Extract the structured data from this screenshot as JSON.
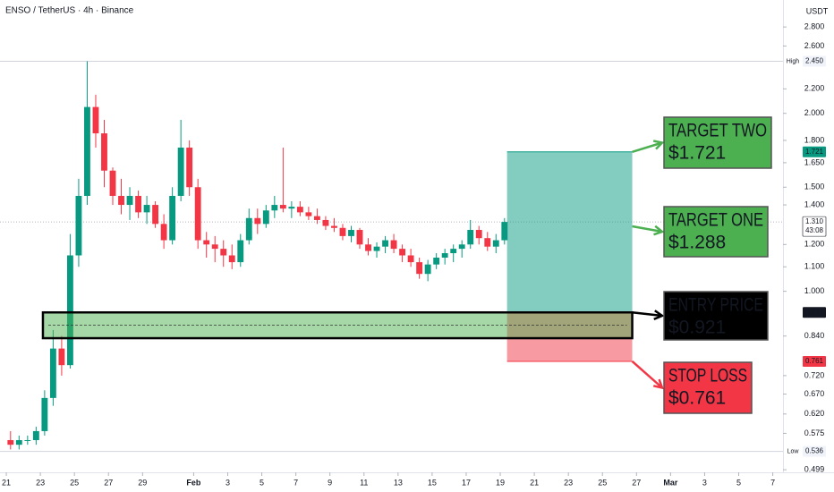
{
  "chart_data": {
    "type": "candlestick",
    "title": "ENSO / TetherUS · 4h · Binance",
    "currency": "USDT",
    "log_scale": true,
    "grid": false,
    "up_color": "#089981",
    "down_color": "#f23645",
    "x": [
      0.25,
      0.75,
      1.25,
      1.75,
      2.25,
      2.75,
      3.25,
      3.75,
      4.25,
      4.75,
      5.25,
      5.75,
      6.25,
      6.75,
      7.25,
      7.75,
      8.25,
      8.75,
      9.25,
      9.75,
      10.25,
      10.75,
      11.25,
      11.75,
      12.25,
      12.75,
      13.25,
      13.75,
      14.25,
      14.75,
      15.25,
      15.75,
      16.25,
      16.75,
      17.25,
      17.75,
      18.25,
      18.75,
      19.25,
      19.75,
      20.25,
      20.75,
      21.25,
      21.75,
      22.25,
      22.75,
      23.25,
      23.75,
      24.25,
      24.75,
      25.25,
      25.75,
      26.25,
      26.75,
      27.25,
      27.75,
      28.25,
      28.75,
      29.25
    ],
    "open": [
      0.56,
      0.55,
      0.56,
      0.56,
      0.58,
      0.66,
      0.8,
      0.75,
      1.15,
      1.45,
      2.05,
      1.85,
      1.6,
      1.45,
      1.4,
      1.45,
      1.36,
      1.4,
      1.3,
      1.22,
      1.45,
      1.75,
      1.5,
      1.22,
      1.2,
      1.18,
      1.15,
      1.12,
      1.22,
      1.33,
      1.3,
      1.37,
      1.4,
      1.38,
      1.39,
      1.36,
      1.34,
      1.32,
      1.29,
      1.28,
      1.24,
      1.27,
      1.2,
      1.17,
      1.19,
      1.22,
      1.18,
      1.15,
      1.12,
      1.07,
      1.11,
      1.14,
      1.16,
      1.18,
      1.2,
      1.27,
      1.23,
      1.19,
      1.22
    ],
    "high": [
      0.58,
      0.57,
      0.57,
      0.59,
      0.68,
      0.86,
      0.84,
      1.25,
      1.55,
      2.45,
      2.15,
      1.95,
      1.62,
      1.55,
      1.5,
      1.48,
      1.45,
      1.42,
      1.35,
      1.5,
      1.95,
      1.8,
      1.55,
      1.26,
      1.24,
      1.22,
      1.2,
      1.25,
      1.38,
      1.38,
      1.4,
      1.45,
      1.75,
      1.42,
      1.42,
      1.39,
      1.38,
      1.34,
      1.33,
      1.3,
      1.29,
      1.28,
      1.23,
      1.21,
      1.24,
      1.25,
      1.2,
      1.18,
      1.14,
      1.13,
      1.16,
      1.18,
      1.2,
      1.22,
      1.32,
      1.29,
      1.26,
      1.25,
      1.33
    ],
    "low": [
      0.54,
      0.54,
      0.55,
      0.55,
      0.57,
      0.64,
      0.72,
      0.74,
      1.1,
      1.4,
      1.75,
      1.5,
      1.4,
      1.35,
      1.32,
      1.33,
      1.3,
      1.28,
      1.18,
      1.2,
      1.42,
      1.45,
      1.18,
      1.14,
      1.12,
      1.1,
      1.09,
      1.1,
      1.2,
      1.25,
      1.28,
      1.33,
      1.36,
      1.33,
      1.34,
      1.32,
      1.3,
      1.27,
      1.26,
      1.22,
      1.21,
      1.18,
      1.15,
      1.14,
      1.16,
      1.16,
      1.12,
      1.1,
      1.05,
      1.04,
      1.09,
      1.11,
      1.12,
      1.14,
      1.18,
      1.2,
      1.17,
      1.16,
      1.2
    ],
    "close": [
      0.55,
      0.56,
      0.56,
      0.58,
      0.66,
      0.8,
      0.75,
      1.15,
      1.45,
      2.05,
      1.85,
      1.6,
      1.45,
      1.4,
      1.45,
      1.36,
      1.4,
      1.3,
      1.22,
      1.45,
      1.75,
      1.5,
      1.22,
      1.2,
      1.18,
      1.15,
      1.12,
      1.22,
      1.33,
      1.3,
      1.37,
      1.4,
      1.38,
      1.39,
      1.36,
      1.34,
      1.32,
      1.29,
      1.28,
      1.24,
      1.27,
      1.2,
      1.17,
      1.19,
      1.22,
      1.18,
      1.15,
      1.12,
      1.07,
      1.11,
      1.14,
      1.16,
      1.18,
      1.2,
      1.27,
      1.23,
      1.19,
      1.22,
      1.31
    ],
    "xlim": [
      -0.37,
      45.6
    ],
    "xticks": [
      {
        "value": 0,
        "label": "21"
      },
      {
        "value": 2,
        "label": "23"
      },
      {
        "value": 4,
        "label": "25"
      },
      {
        "value": 6,
        "label": "27"
      },
      {
        "value": 8,
        "label": "29"
      },
      {
        "value": 11,
        "label": "Feb"
      },
      {
        "value": 13,
        "label": "3"
      },
      {
        "value": 15,
        "label": "5"
      },
      {
        "value": 17,
        "label": "7"
      },
      {
        "value": 19,
        "label": "9"
      },
      {
        "value": 21,
        "label": "11"
      },
      {
        "value": 23,
        "label": "13"
      },
      {
        "value": 25,
        "label": "15"
      },
      {
        "value": 27,
        "label": "17"
      },
      {
        "value": 29,
        "label": "19"
      },
      {
        "value": 31,
        "label": "21"
      },
      {
        "value": 33,
        "label": "23"
      },
      {
        "value": 35,
        "label": "25"
      },
      {
        "value": 37,
        "label": "27"
      },
      {
        "value": 39,
        "label": "Mar"
      },
      {
        "value": 41,
        "label": "3"
      },
      {
        "value": 43,
        "label": "5"
      },
      {
        "value": 45,
        "label": "7"
      }
    ],
    "ylim": [
      0.494,
      3.11
    ],
    "yticks": [
      {
        "value": 2.8,
        "label": "2.800"
      },
      {
        "value": 2.6,
        "label": "2.600"
      },
      {
        "value": 2.2,
        "label": "2.200"
      },
      {
        "value": 2.0,
        "label": "2.000"
      },
      {
        "value": 1.8,
        "label": "1.800"
      },
      {
        "value": 1.65,
        "label": "1.650"
      },
      {
        "value": 1.5,
        "label": "1.500"
      },
      {
        "value": 1.4,
        "label": "1.400"
      },
      {
        "value": 1.2,
        "label": "1.200"
      },
      {
        "value": 1.1,
        "label": "1.100"
      },
      {
        "value": 1.0,
        "label": "1.000"
      },
      {
        "value": 0.84,
        "label": "0.840"
      },
      {
        "value": 0.72,
        "label": "0.720"
      },
      {
        "value": 0.67,
        "label": "0.670"
      },
      {
        "value": 0.62,
        "label": "0.620"
      },
      {
        "value": 0.575,
        "label": "0.575"
      },
      {
        "value": 0.499,
        "label": "0.499"
      }
    ],
    "high_line": {
      "name": "High",
      "value": 2.45,
      "label": "2.450"
    },
    "low_line": {
      "name": "Low",
      "value": 0.536,
      "label": "0.536"
    },
    "last_price": {
      "value": 1.31,
      "label": "1.310",
      "countdown": "43:08"
    },
    "position_x": [
      29.4,
      36.75
    ],
    "entry_zone_x_start": 2.15,
    "entry_zone_low": 0.833,
    "callouts": [
      {
        "title": "TARGET TWO",
        "price": "$1.721",
        "value": 1.721,
        "axis_label": "1.721",
        "color": "#4caf50",
        "tag_color": "#089981"
      },
      {
        "title": "TARGET ONE",
        "price": "$1.288",
        "value": 1.288,
        "color": "#4caf50"
      },
      {
        "title": "ENTRY PRICE",
        "price": "$0.921",
        "value": 0.921,
        "axis_label": "0.921",
        "color": "#000000",
        "tag_color": "#131722"
      },
      {
        "title": "STOP LOSS",
        "price": "$0.761",
        "value": 0.761,
        "axis_label": "0.761",
        "color": "#f23645",
        "tag_color": "#f23645"
      }
    ]
  }
}
